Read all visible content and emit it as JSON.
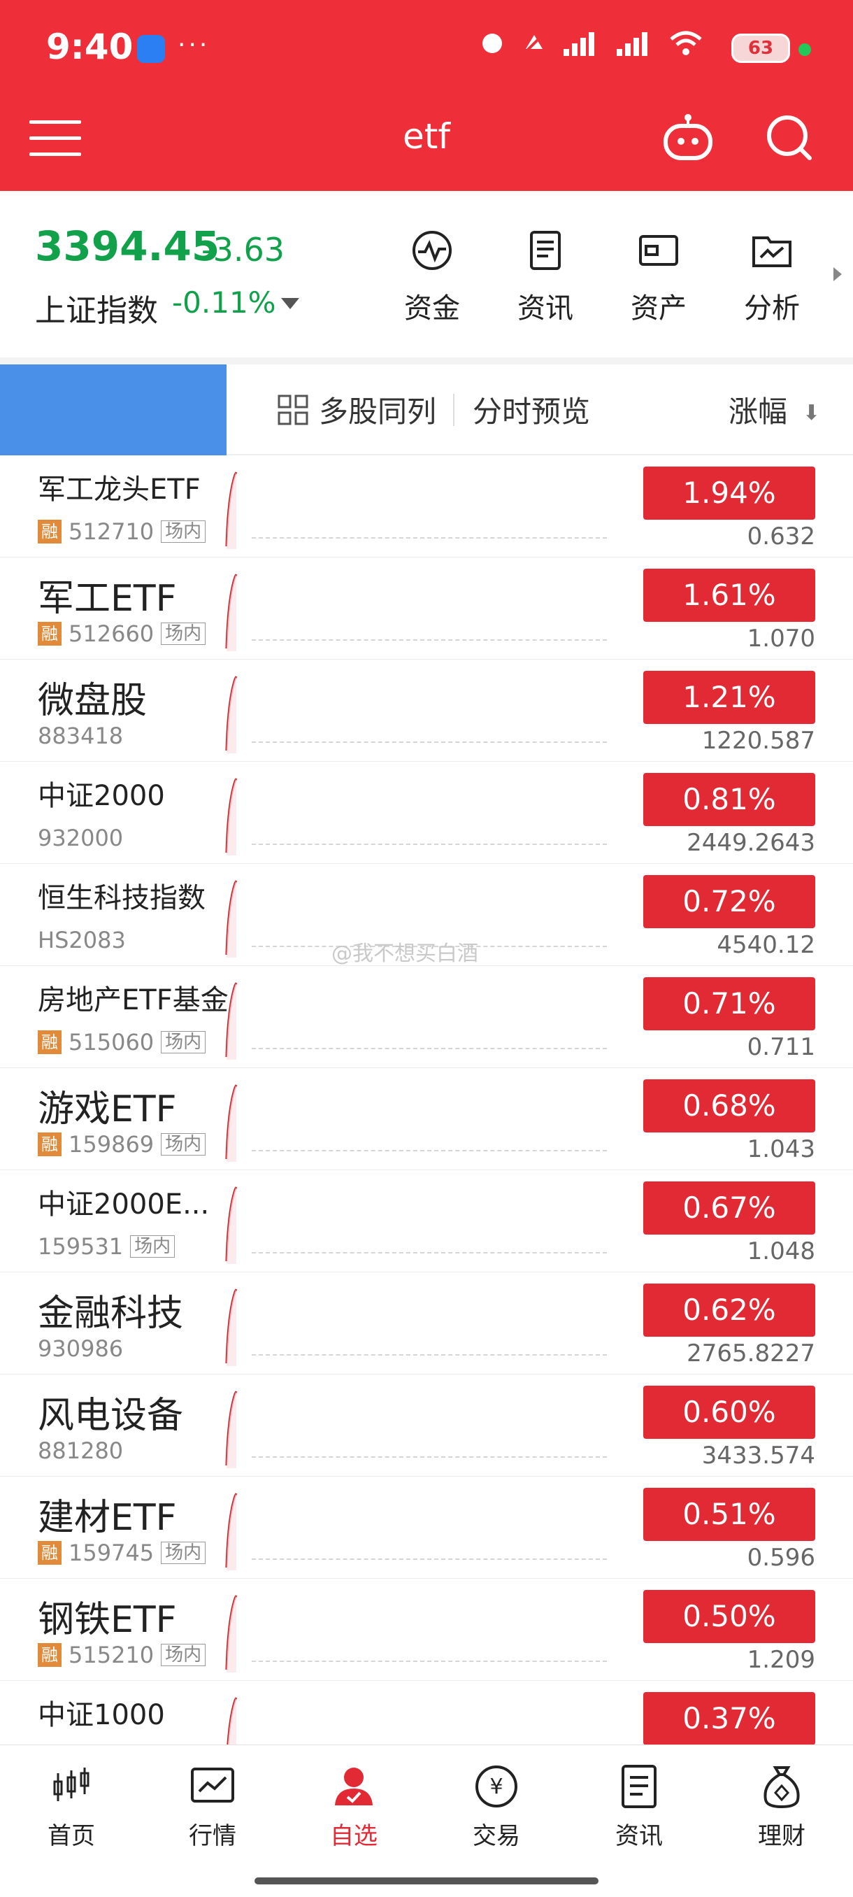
{
  "status_bar": {
    "time": "9:40",
    "dots": "···",
    "battery": "63"
  },
  "header": {
    "title": "etf"
  },
  "index": {
    "value": "3394.45",
    "change": "-3.63",
    "name": "上证指数",
    "pct": "-0.11%"
  },
  "tools": [
    {
      "label": "资金",
      "icon": "pulse-icon"
    },
    {
      "label": "资讯",
      "icon": "document-icon"
    },
    {
      "label": "资产",
      "icon": "wallet-icon"
    },
    {
      "label": "分析",
      "icon": "folder-chart-icon"
    }
  ],
  "tabbar": {
    "multi": "多股同列",
    "fenshi": "分时预览",
    "sort": "涨幅"
  },
  "rows": [
    {
      "name": "军工龙头ETF",
      "code": "512710",
      "rong": "融",
      "venue": "场内",
      "pct": "1.94%",
      "price": "0.632"
    },
    {
      "name": "军工ETF",
      "code": "512660",
      "rong": "融",
      "venue": "场内",
      "pct": "1.61%",
      "price": "1.070"
    },
    {
      "name": "微盘股",
      "code": "883418",
      "pct": "1.21%",
      "price": "1220.587"
    },
    {
      "name": "中证2000",
      "code": "932000",
      "pct": "0.81%",
      "price": "2449.2643"
    },
    {
      "name": "恒生科技指数",
      "code": "HS2083",
      "pct": "0.72%",
      "price": "4540.12"
    },
    {
      "name": "房地产ETF基金",
      "code": "515060",
      "rong": "融",
      "venue": "场内",
      "pct": "0.71%",
      "price": "0.711"
    },
    {
      "name": "游戏ETF",
      "code": "159869",
      "rong": "融",
      "venue": "场内",
      "pct": "0.68%",
      "price": "1.043"
    },
    {
      "name": "中证2000E...",
      "code": "159531",
      "venue": "场内",
      "pct": "0.67%",
      "price": "1.048"
    },
    {
      "name": "金融科技",
      "code": "930986",
      "pct": "0.62%",
      "price": "2765.8227"
    },
    {
      "name": "风电设备",
      "code": "881280",
      "pct": "0.60%",
      "price": "3433.574"
    },
    {
      "name": "建材ETF",
      "code": "159745",
      "rong": "融",
      "venue": "场内",
      "pct": "0.51%",
      "price": "0.596"
    },
    {
      "name": "钢铁ETF",
      "code": "515210",
      "rong": "融",
      "venue": "场内",
      "pct": "0.50%",
      "price": "1.209"
    },
    {
      "name": "中证1000",
      "code": "",
      "pct": "0.37%",
      "price": ""
    }
  ],
  "watermark": "@我不想买白酒",
  "bottom_nav": [
    {
      "label": "首页",
      "icon": "candlestick-icon"
    },
    {
      "label": "行情",
      "icon": "chart-line-icon"
    },
    {
      "label": "自选",
      "icon": "user-check-icon",
      "active": true
    },
    {
      "label": "交易",
      "icon": "yen-icon"
    },
    {
      "label": "资讯",
      "icon": "news-icon"
    },
    {
      "label": "理财",
      "icon": "money-bag-icon"
    }
  ],
  "colors": {
    "brand_red": "#ee2f3a",
    "up_red": "#e22a35",
    "down_green": "#11a14a",
    "tab_blue": "#4a90e8"
  }
}
